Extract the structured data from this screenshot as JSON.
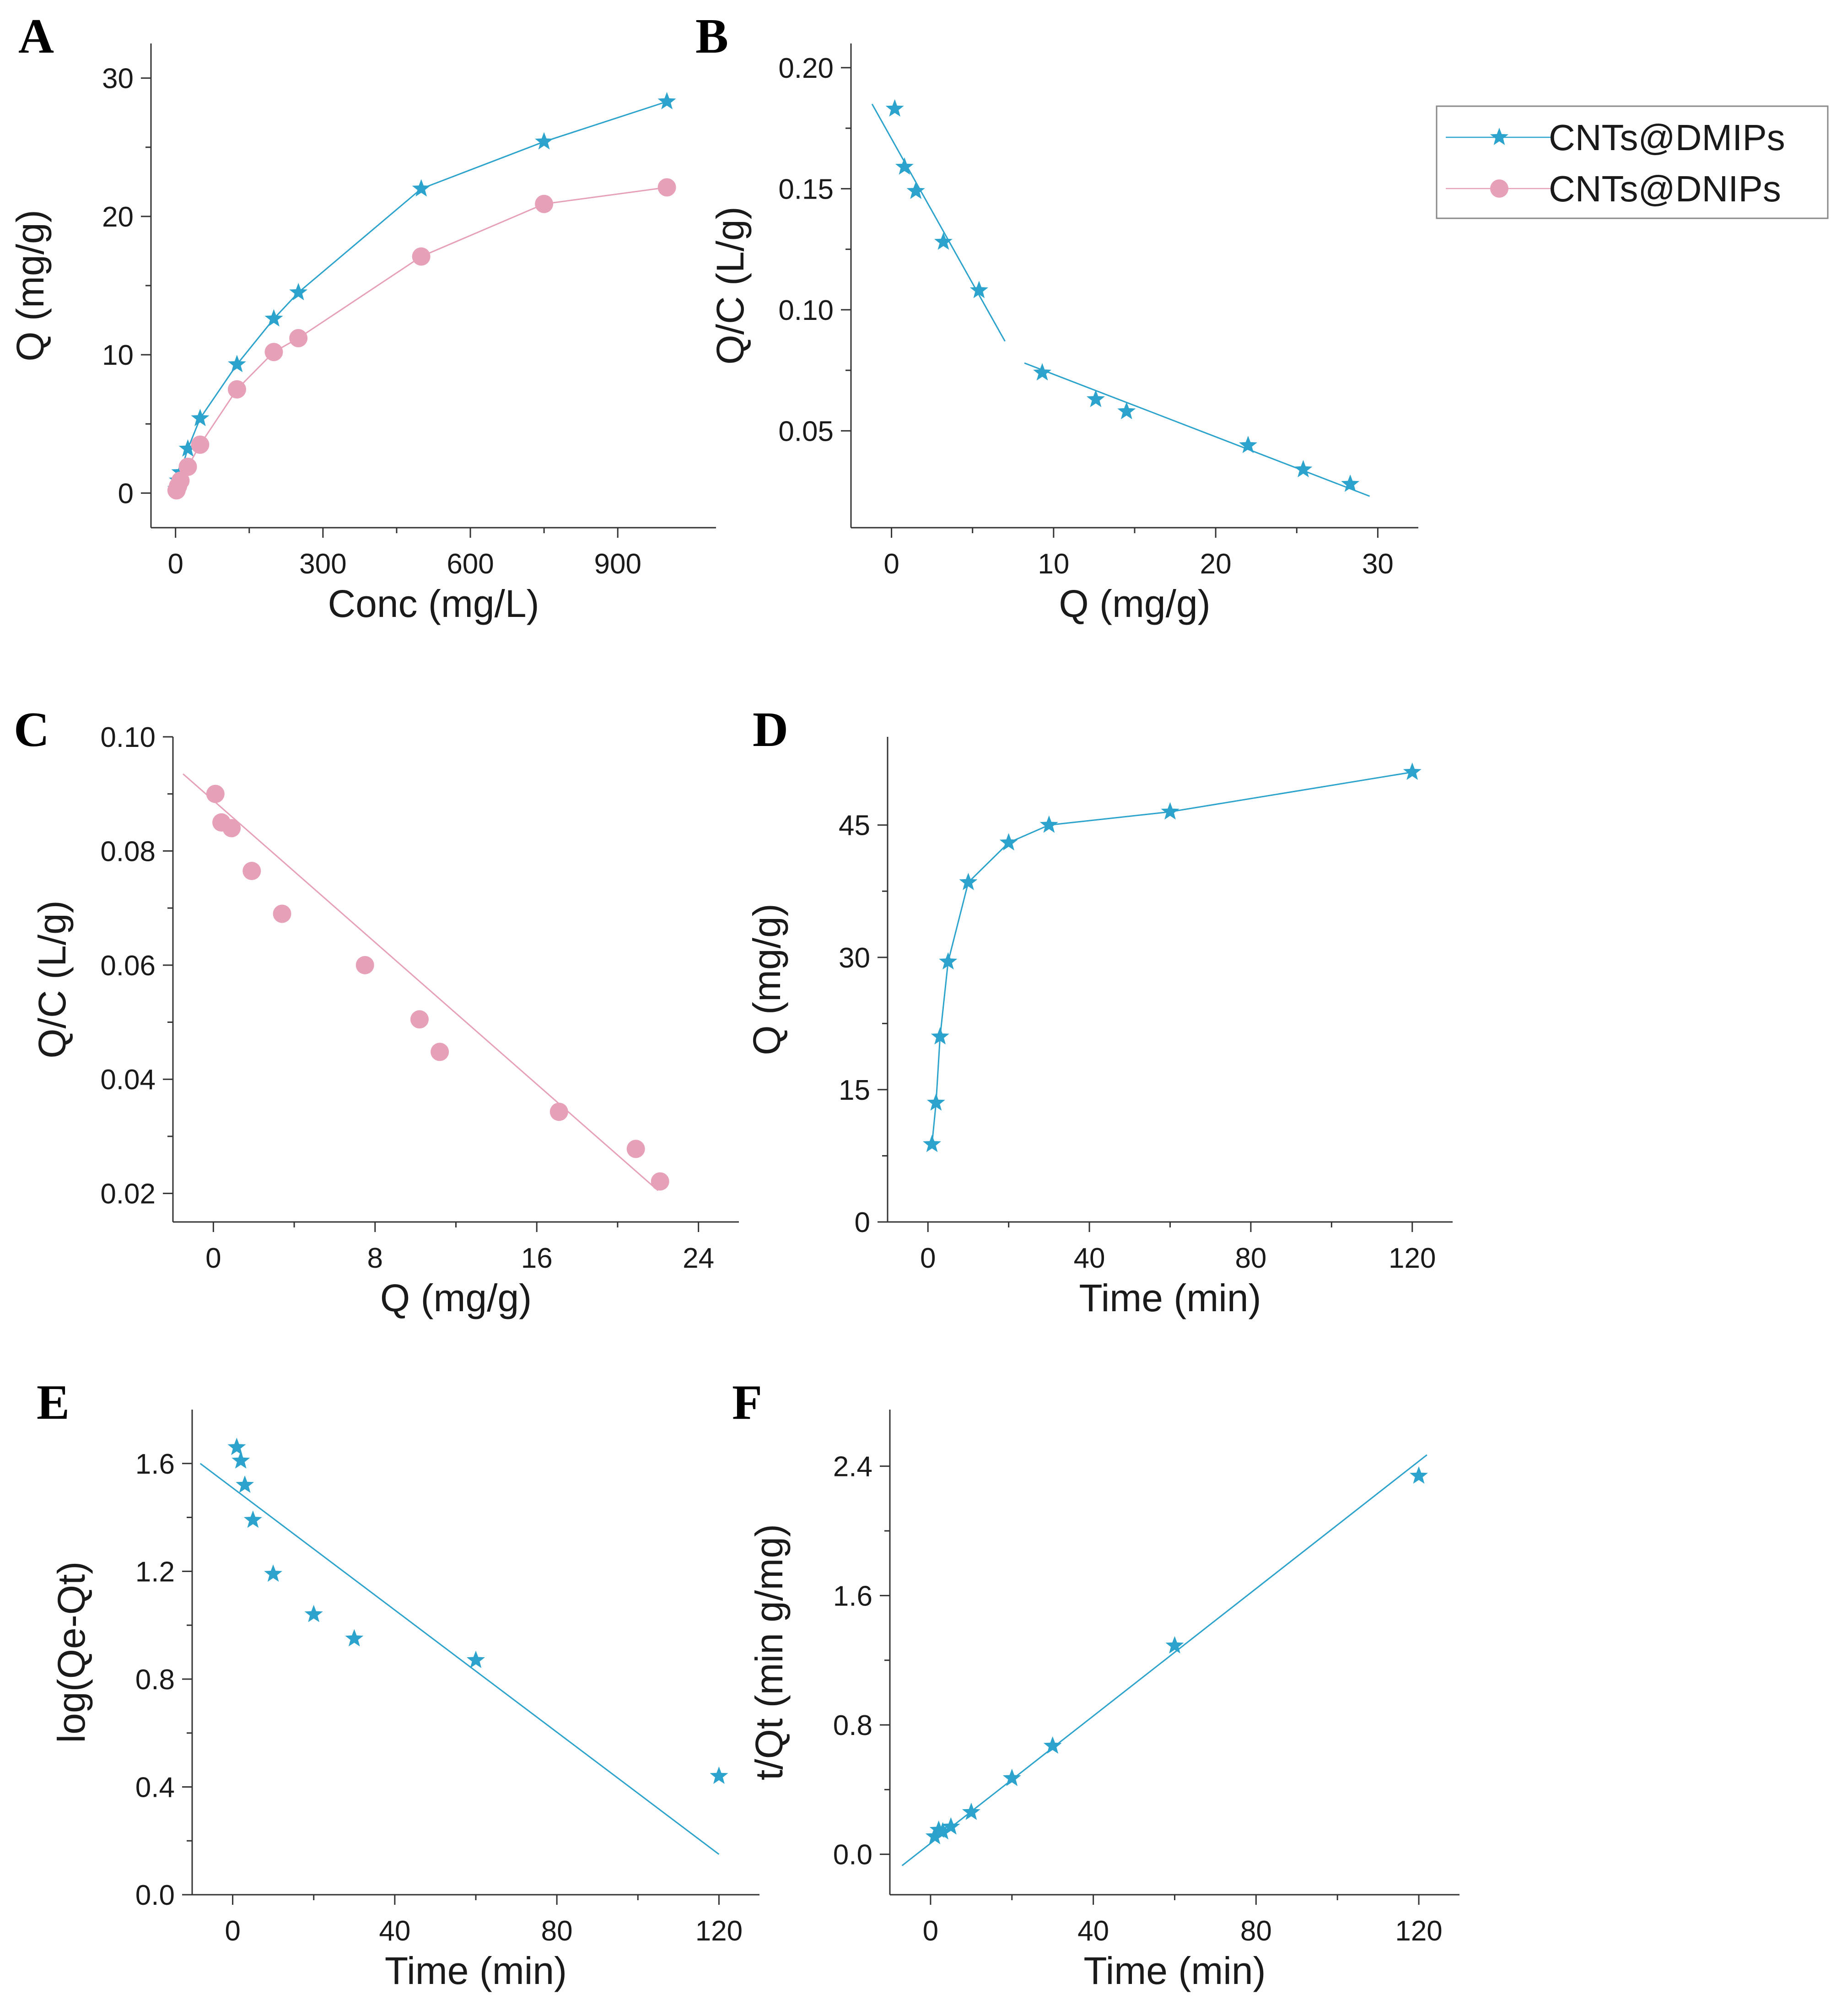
{
  "colors": {
    "dmip": "#2ba3cc",
    "dnip": "#e6a0b8",
    "axis": "#333333"
  },
  "legend": {
    "items": [
      {
        "label": "CNTs@DMIPs",
        "marker": "star",
        "color": "#2ba3cc"
      },
      {
        "label": "CNTs@DNIPs",
        "marker": "circle",
        "color": "#e6a0b8"
      }
    ]
  },
  "chart_data": [
    {
      "id": "A",
      "panel_label": "A",
      "type": "line",
      "xlabel": "Conc (mg/L)",
      "ylabel": "Q (mg/g)",
      "xlim": [
        -50,
        1100
      ],
      "ylim": [
        -2.5,
        32.5
      ],
      "xticks": [
        0,
        300,
        600,
        900
      ],
      "yticks": [
        0,
        10,
        20,
        30
      ],
      "series": [
        {
          "name": "CNTs@DMIPs",
          "marker": "star",
          "color": "#2ba3cc",
          "connect": true,
          "x": [
            2,
            5,
            10,
            25,
            50,
            125,
            200,
            250,
            500,
            750,
            1000
          ],
          "y": [
            0.3,
            0.9,
            1.5,
            3.2,
            5.4,
            9.3,
            12.6,
            14.5,
            22.0,
            25.4,
            28.3
          ]
        },
        {
          "name": "CNTs@DNIPs",
          "marker": "circle",
          "color": "#e6a0b8",
          "connect": true,
          "x": [
            2,
            5,
            10,
            25,
            50,
            125,
            200,
            250,
            500,
            750,
            1000
          ],
          "y": [
            0.2,
            0.5,
            0.9,
            1.9,
            3.5,
            7.5,
            10.2,
            11.2,
            17.1,
            20.9,
            22.1
          ]
        }
      ]
    },
    {
      "id": "B",
      "panel_label": "B",
      "type": "scatter",
      "xlabel": "Q (mg/g)",
      "ylabel": "Q/C (L/g)",
      "xlim": [
        -2.5,
        32.5
      ],
      "ylim": [
        0.01,
        0.21
      ],
      "xticks": [
        0,
        10,
        20,
        30
      ],
      "yticks": [
        0.05,
        0.1,
        0.15,
        0.2
      ],
      "ytick_labels": [
        "0.05",
        "0.10",
        "0.15",
        "0.20"
      ],
      "series": [
        {
          "name": "CNTs@DMIPs",
          "marker": "star",
          "color": "#2ba3cc",
          "x": [
            0.2,
            0.8,
            1.5,
            3.2,
            5.4,
            9.3,
            12.6,
            14.5,
            22.0,
            25.4,
            28.3
          ],
          "y": [
            0.183,
            0.159,
            0.149,
            0.128,
            0.108,
            0.074,
            0.063,
            0.058,
            0.044,
            0.034,
            0.028
          ]
        }
      ],
      "fit_lines": [
        {
          "x": [
            -1.2,
            7.0
          ],
          "y": [
            0.185,
            0.087
          ]
        },
        {
          "x": [
            8.2,
            29.5
          ],
          "y": [
            0.078,
            0.023
          ]
        }
      ]
    },
    {
      "id": "C",
      "panel_label": "C",
      "type": "scatter",
      "xlabel": "Q (mg/g)",
      "ylabel": "Q/C (L/g)",
      "xlim": [
        -2,
        26
      ],
      "ylim": [
        0.015,
        0.1
      ],
      "xticks": [
        0,
        8,
        16,
        24
      ],
      "yticks": [
        0.02,
        0.04,
        0.06,
        0.08,
        0.1
      ],
      "ytick_labels": [
        "0.02",
        "0.04",
        "0.06",
        "0.08",
        "0.10"
      ],
      "series": [
        {
          "name": "CNTs@DNIPs",
          "marker": "circle",
          "color": "#e6a0b8",
          "x": [
            0.1,
            0.4,
            0.9,
            1.9,
            3.4,
            7.5,
            10.2,
            11.2,
            17.1,
            20.9,
            22.1
          ],
          "y": [
            0.09,
            0.085,
            0.084,
            0.0765,
            0.069,
            0.06,
            0.0505,
            0.0448,
            0.0343,
            0.0278,
            0.0221
          ]
        }
      ],
      "fit_lines": [
        {
          "x": [
            -1.5,
            22.0
          ],
          "y": [
            0.0935,
            0.0205
          ]
        }
      ]
    },
    {
      "id": "D",
      "panel_label": "D",
      "type": "line",
      "xlabel": "Time (min)",
      "ylabel": "Q (mg/g)",
      "xlim": [
        -10,
        130
      ],
      "ylim": [
        0,
        55
      ],
      "xticks": [
        0,
        40,
        80,
        120
      ],
      "yticks": [
        0,
        15,
        30,
        45
      ],
      "series": [
        {
          "name": "CNTs@DMIPs",
          "marker": "star",
          "color": "#2ba3cc",
          "connect": true,
          "x": [
            1,
            2,
            3,
            5,
            10,
            20,
            30,
            60,
            120
          ],
          "y": [
            8.8,
            13.5,
            21.0,
            29.5,
            38.5,
            43.0,
            45.0,
            46.5,
            51.0
          ]
        }
      ]
    },
    {
      "id": "E",
      "panel_label": "E",
      "type": "scatter",
      "xlabel": "Time (min)",
      "ylabel": "log(Qe-Qt)",
      "xlim": [
        -10,
        130
      ],
      "ylim": [
        0,
        1.8
      ],
      "xticks": [
        0,
        40,
        80,
        120
      ],
      "yticks": [
        0,
        0.4,
        0.8,
        1.2,
        1.6
      ],
      "ytick_labels": [
        "0.0",
        "0.4",
        "0.8",
        "1.2",
        "1.6"
      ],
      "series": [
        {
          "name": "CNTs@DMIPs",
          "marker": "star",
          "color": "#2ba3cc",
          "x": [
            1,
            2,
            3,
            5,
            10,
            20,
            30,
            60,
            120
          ],
          "y": [
            1.66,
            1.61,
            1.52,
            1.39,
            1.19,
            1.04,
            0.95,
            0.87,
            0.44
          ]
        }
      ],
      "fit_lines": [
        {
          "x": [
            -8,
            120
          ],
          "y": [
            1.6,
            0.15
          ]
        }
      ]
    },
    {
      "id": "F",
      "panel_label": "F",
      "type": "scatter",
      "xlabel": "Time (min)",
      "ylabel": "t/Qt (min g/mg)",
      "xlim": [
        -10,
        130
      ],
      "ylim": [
        -0.25,
        2.75
      ],
      "xticks": [
        0,
        40,
        80,
        120
      ],
      "yticks": [
        0,
        0.8,
        1.6,
        2.4
      ],
      "ytick_labels": [
        "0.0",
        "0.8",
        "1.6",
        "2.4"
      ],
      "series": [
        {
          "name": "CNTs@DMIPs",
          "marker": "star",
          "color": "#2ba3cc",
          "x": [
            1,
            2,
            3,
            5,
            10,
            20,
            30,
            60,
            120
          ],
          "y": [
            0.11,
            0.15,
            0.14,
            0.17,
            0.26,
            0.47,
            0.67,
            1.29,
            2.34
          ]
        }
      ],
      "fit_lines": [
        {
          "x": [
            -7,
            122
          ],
          "y": [
            -0.07,
            2.47
          ]
        }
      ]
    }
  ]
}
